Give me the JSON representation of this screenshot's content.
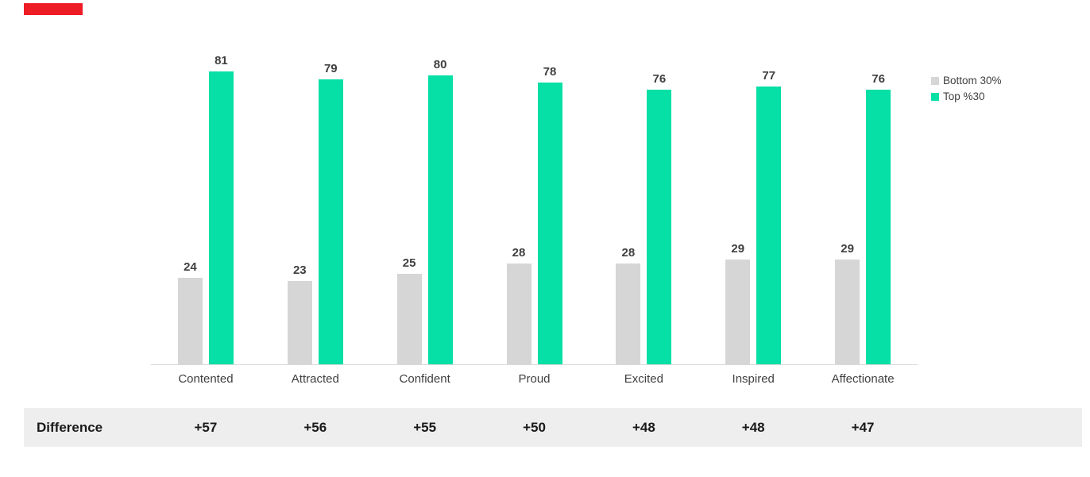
{
  "accent": {
    "red_bar_color": "#ee1c25"
  },
  "chart_data": {
    "type": "bar",
    "categories": [
      "Contented",
      "Attracted",
      "Confident",
      "Proud",
      "Excited",
      "Inspired",
      "Affectionate"
    ],
    "series": [
      {
        "name": "Bottom 30%",
        "color": "#d6d6d6",
        "values": [
          24,
          23,
          25,
          28,
          28,
          29,
          29
        ]
      },
      {
        "name": "Top %30",
        "color": "#06dfa6",
        "values": [
          81,
          79,
          80,
          78,
          76,
          77,
          76
        ]
      }
    ],
    "title": "",
    "xlabel": "",
    "ylabel": "",
    "ylim": [
      0,
      85
    ],
    "grid": false,
    "legend_position": "right"
  },
  "legend": {
    "items": [
      {
        "label": "Bottom 30%",
        "color": "#d6d6d6"
      },
      {
        "label": "Top %30",
        "color": "#06dfa6"
      }
    ]
  },
  "difference_row": {
    "label": "Difference",
    "values": [
      "+57",
      "+56",
      "+55",
      "+50",
      "+48",
      "+48",
      "+47"
    ]
  }
}
